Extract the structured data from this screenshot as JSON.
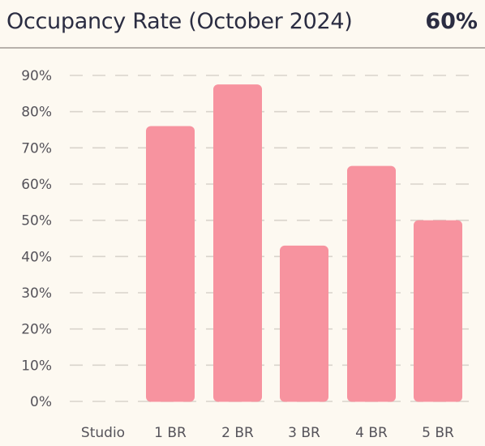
{
  "header": {
    "title": "Occupancy Rate (October 2024)",
    "summary_value": "60%"
  },
  "colors": {
    "bar": "#f7939f",
    "grid": "#d9d4cc",
    "text": "#2b2d42",
    "background": "#fdf9f1"
  },
  "chart_data": {
    "type": "bar",
    "title": "Occupancy Rate (October 2024)",
    "categories": [
      "Studio",
      "1 BR",
      "2 BR",
      "3 BR",
      "4 BR",
      "5 BR"
    ],
    "values": [
      0,
      76,
      87.5,
      43,
      65,
      50
    ],
    "ylim": [
      0,
      90
    ],
    "yticks": [
      0,
      10,
      20,
      30,
      40,
      50,
      60,
      70,
      80,
      90
    ],
    "ytick_labels": [
      "0%",
      "10%",
      "20%",
      "30%",
      "40%",
      "50%",
      "60%",
      "70%",
      "80%",
      "90%"
    ],
    "xlabel": "",
    "ylabel": "",
    "grid": true,
    "legend": false
  }
}
